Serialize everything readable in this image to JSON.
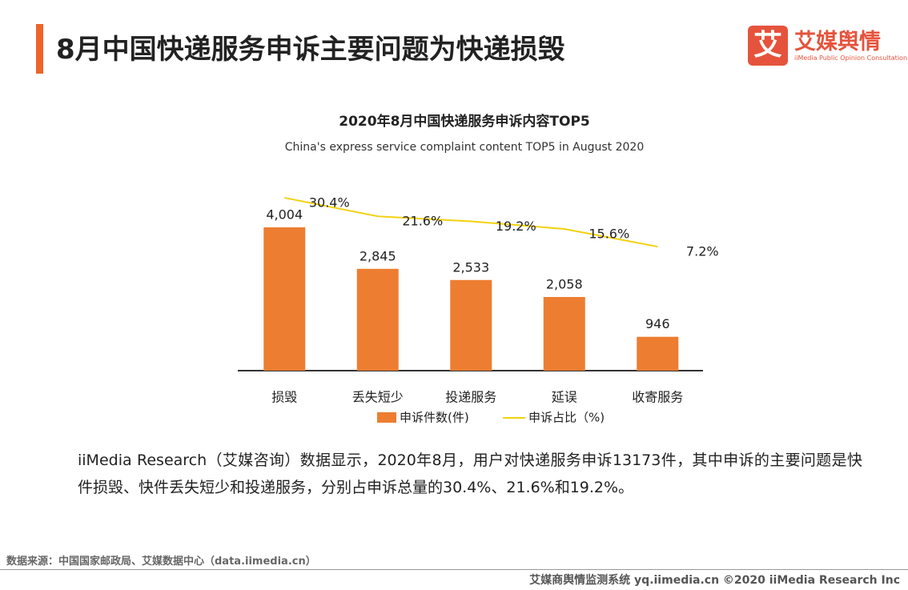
{
  "header": {
    "title": "8月中国快递服务申诉主要问题为快递损毁",
    "logo_name": "艾媒舆情",
    "logo_tagline": "iiMedia Public Opinion Consultation"
  },
  "chart_data": {
    "type": "bar-line",
    "title": "2020年8月中国快递服务申诉内容TOP5",
    "subtitle": "China's express service complaint content TOP5 in August 2020",
    "categories": [
      "损毁",
      "丢失短少",
      "投递服务",
      "延误",
      "收寄服务"
    ],
    "series": [
      {
        "name": "申诉件数(件)",
        "type": "bar",
        "color": "#ED7D31",
        "values": [
          4004,
          2845,
          2533,
          2058,
          946
        ],
        "value_labels": [
          "4,004",
          "2,845",
          "2,533",
          "2,058",
          "946"
        ]
      },
      {
        "name": "申诉占比（%)",
        "type": "line",
        "axis": "y2",
        "color": "#F2D10F",
        "values": [
          30.4,
          21.6,
          19.2,
          15.6,
          7.2
        ],
        "value_labels": [
          "30.4%",
          "21.6%",
          "19.2%",
          "15.6%",
          "7.2%"
        ]
      }
    ]
  },
  "paragraph": "iiMedia Research（艾媒咨询）数据显示，2020年8月，用户对快递服务申诉13173件，其中申诉的主要问题是快件损毁、快件丢失短少和投递服务，分别占申诉总量的30.4%、21.6%和19.2%。",
  "source": "数据来源：中国国家邮政局、艾媒数据中心（data.iimedia.cn）",
  "footer": "艾媒商舆情监测系统 yq.iimedia.cn ©2020  iiMedia Research  Inc"
}
